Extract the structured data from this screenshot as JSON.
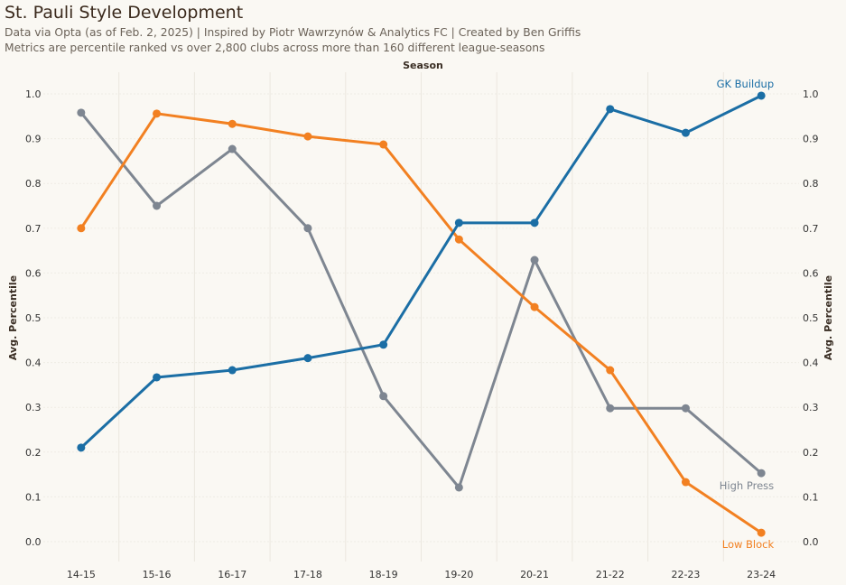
{
  "chart_data": {
    "type": "line",
    "title": "St. Pauli Style Development",
    "subtitle_lines": [
      "Data via Opta (as of Feb. 2, 2025) | Inspired by Piotr Wawrzynów & Analytics FC | Created by Ben Griffis",
      "Metrics are percentile ranked vs over 2,800 clubs across more than 160 different league-seasons"
    ],
    "xlabel": "Season",
    "ylabel": "Avg. Percentile",
    "categories": [
      "14-15",
      "15-16",
      "16-17",
      "17-18",
      "18-19",
      "19-20",
      "20-21",
      "21-22",
      "22-23",
      "23-24"
    ],
    "ylim": [
      0,
      1.0
    ],
    "yticks": [
      "0.0",
      "0.1",
      "0.2",
      "0.3",
      "0.4",
      "0.5",
      "0.6",
      "0.7",
      "0.8",
      "0.9",
      "1.0"
    ],
    "grid": true,
    "series": [
      {
        "name": "GK Buildup",
        "color": "#1b6ea5",
        "values": [
          0.21,
          0.367,
          0.383,
          0.41,
          0.44,
          0.712,
          0.712,
          0.966,
          0.913,
          0.996
        ]
      },
      {
        "name": "Low Block",
        "color": "#f28021",
        "values": [
          0.7,
          0.956,
          0.933,
          0.905,
          0.887,
          0.675,
          0.524,
          0.383,
          0.133,
          0.02
        ]
      },
      {
        "name": "High Press",
        "color": "#7e8691",
        "values": [
          0.958,
          0.75,
          0.877,
          0.7,
          0.325,
          0.121,
          0.629,
          0.298,
          0.298,
          0.153
        ]
      }
    ]
  }
}
